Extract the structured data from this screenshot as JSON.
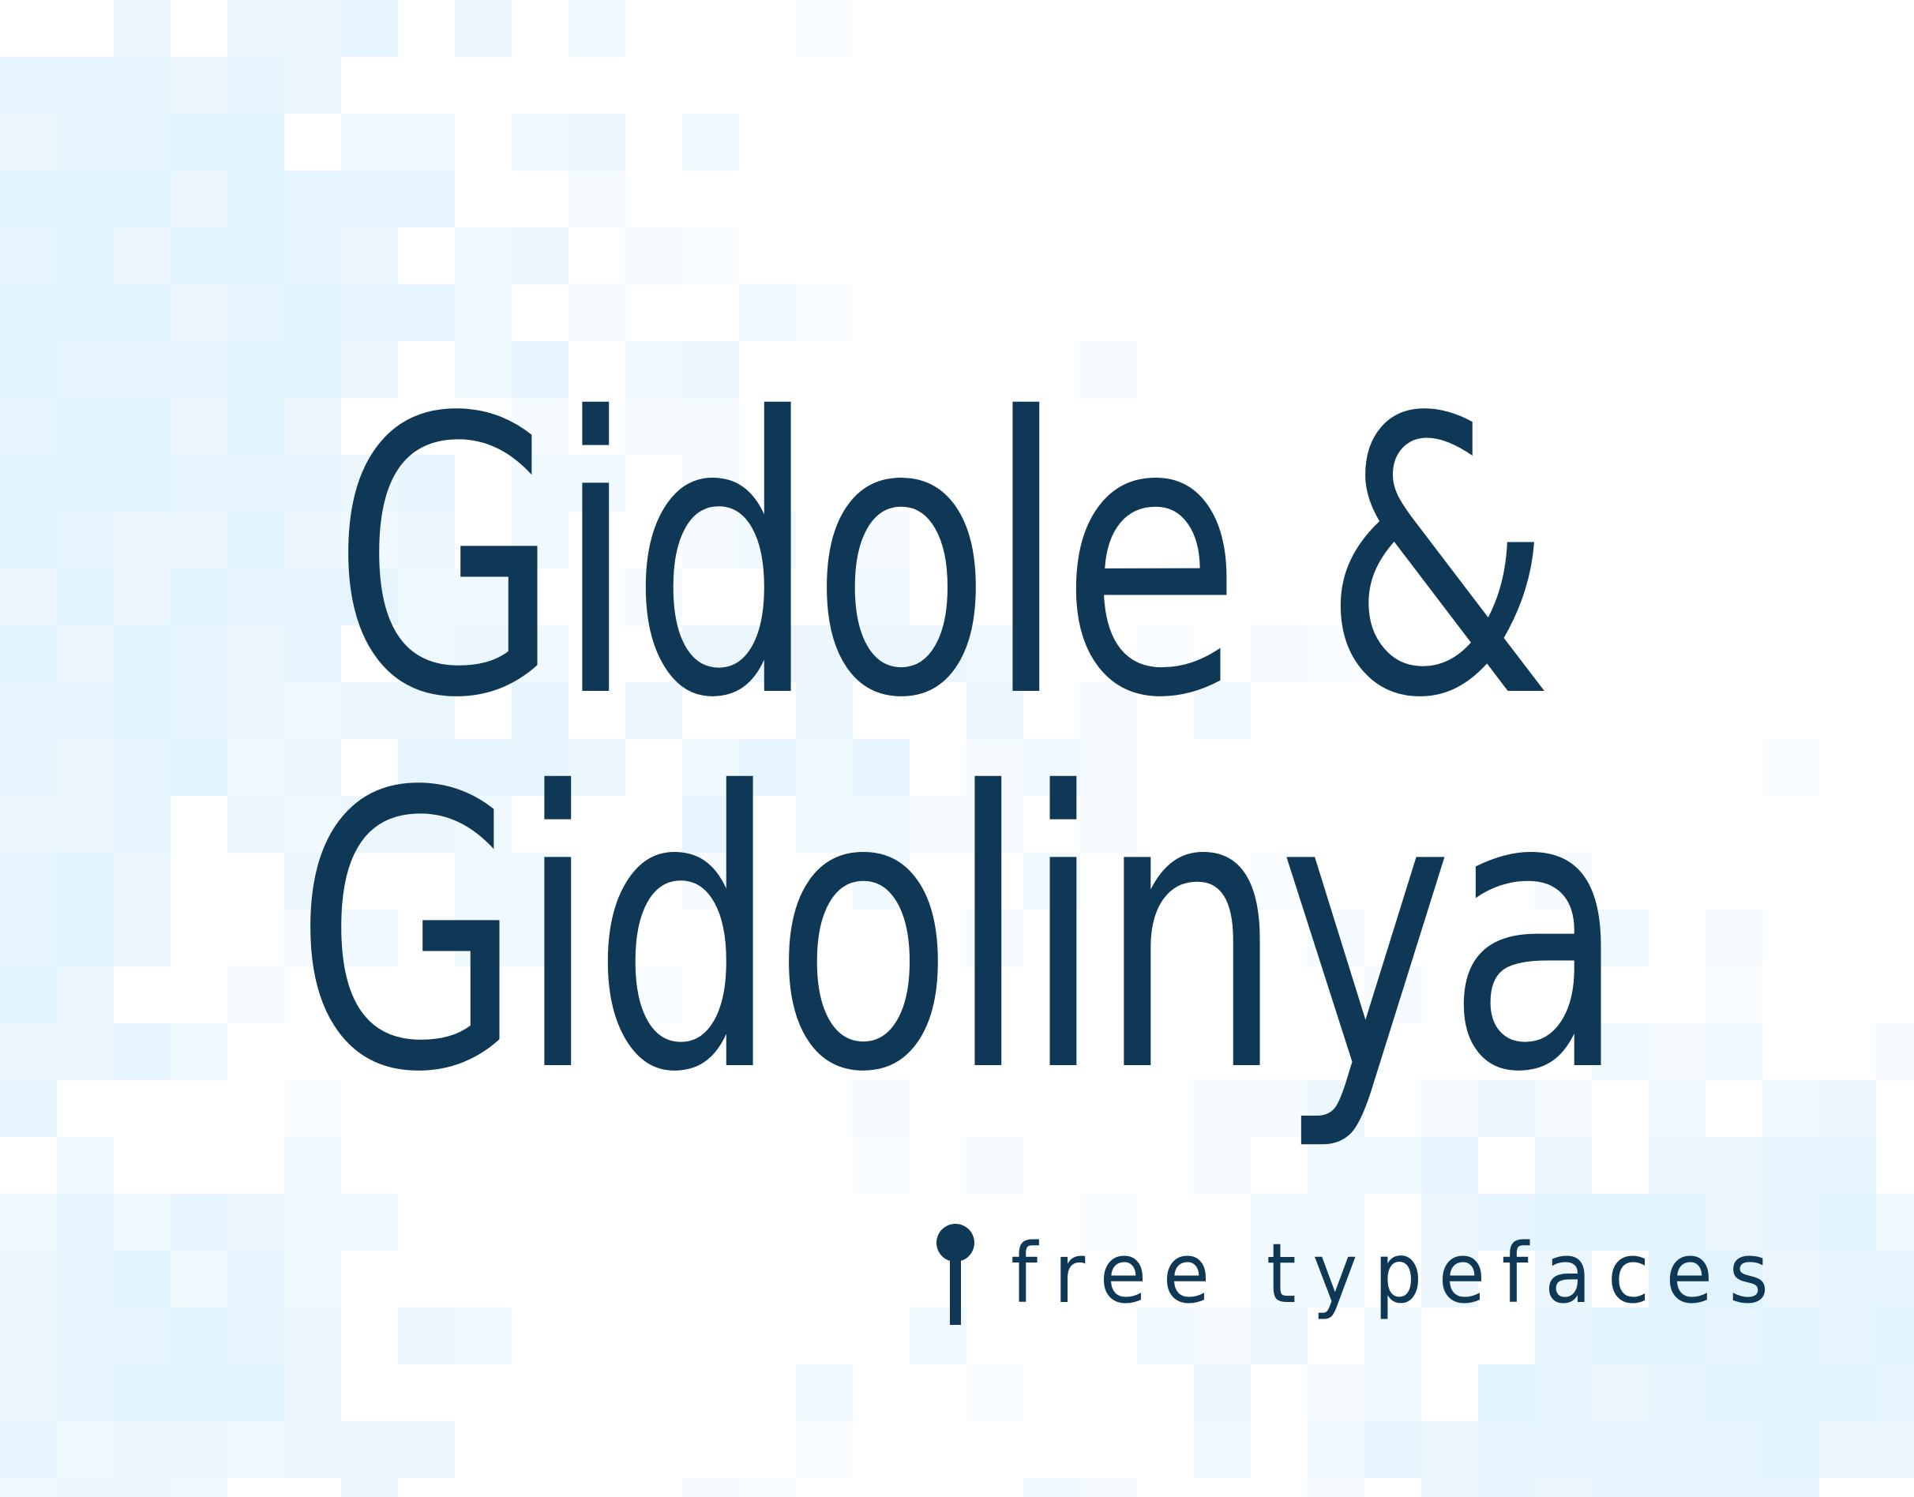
{
  "headline": {
    "line1": "Gidole &",
    "line2": "Gidolinya"
  },
  "tagline": {
    "text": "free typefaces",
    "icon": "gidole-logo-icon"
  },
  "colors": {
    "text": "#0f3756",
    "background": "#ffffff",
    "mosaic_tint": "#e1f2fc"
  },
  "icons": {
    "logo": "pin-logo-icon"
  }
}
